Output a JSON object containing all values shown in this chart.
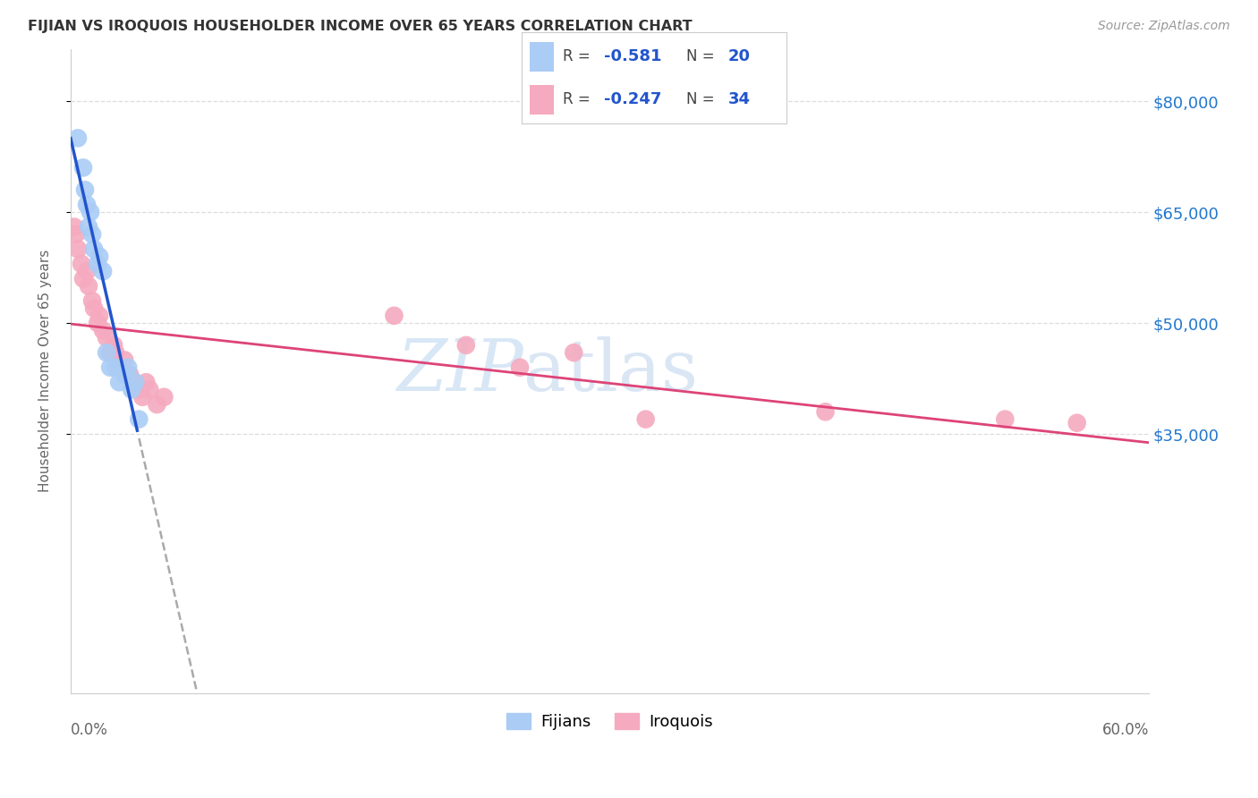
{
  "title": "FIJIAN VS IROQUOIS HOUSEHOLDER INCOME OVER 65 YEARS CORRELATION CHART",
  "source": "Source: ZipAtlas.com",
  "ylabel": "Householder Income Over 65 years",
  "watermark_zip": "ZIP",
  "watermark_atlas": "atlas",
  "yticks": [
    "$35,000",
    "$50,000",
    "$65,000",
    "$80,000"
  ],
  "ytick_values": [
    35000,
    50000,
    65000,
    80000
  ],
  "y_min": 0,
  "y_max": 87000,
  "x_min": 0.0,
  "x_max": 0.6,
  "fijian_color": "#aaccf5",
  "iroquois_color": "#f5aabf",
  "fijian_line_color": "#2255cc",
  "iroquois_line_color": "#dd4477",
  "fijian_points_x": [
    0.004,
    0.007,
    0.008,
    0.009,
    0.01,
    0.011,
    0.012,
    0.013,
    0.015,
    0.016,
    0.018,
    0.02,
    0.022,
    0.025,
    0.027,
    0.03,
    0.032,
    0.034,
    0.036,
    0.038
  ],
  "fijian_points_y": [
    75000,
    71000,
    68000,
    66000,
    63000,
    65000,
    62000,
    60000,
    58000,
    59000,
    57000,
    46000,
    44000,
    44000,
    42000,
    43000,
    44000,
    41000,
    42000,
    37000
  ],
  "iroquois_points_x": [
    0.002,
    0.003,
    0.004,
    0.006,
    0.007,
    0.009,
    0.01,
    0.012,
    0.013,
    0.015,
    0.016,
    0.018,
    0.02,
    0.022,
    0.024,
    0.025,
    0.028,
    0.03,
    0.033,
    0.035,
    0.038,
    0.04,
    0.042,
    0.044,
    0.048,
    0.052,
    0.18,
    0.22,
    0.25,
    0.28,
    0.32,
    0.42,
    0.52,
    0.56
  ],
  "iroquois_points_y": [
    63000,
    62000,
    60000,
    58000,
    56000,
    57000,
    55000,
    53000,
    52000,
    50000,
    51000,
    49000,
    48000,
    46000,
    47000,
    46000,
    44000,
    45000,
    43000,
    42000,
    41000,
    40000,
    42000,
    41000,
    39000,
    40000,
    51000,
    47000,
    44000,
    46000,
    37000,
    38000,
    37000,
    36500
  ],
  "background_color": "#ffffff",
  "grid_color": "#cccccc"
}
